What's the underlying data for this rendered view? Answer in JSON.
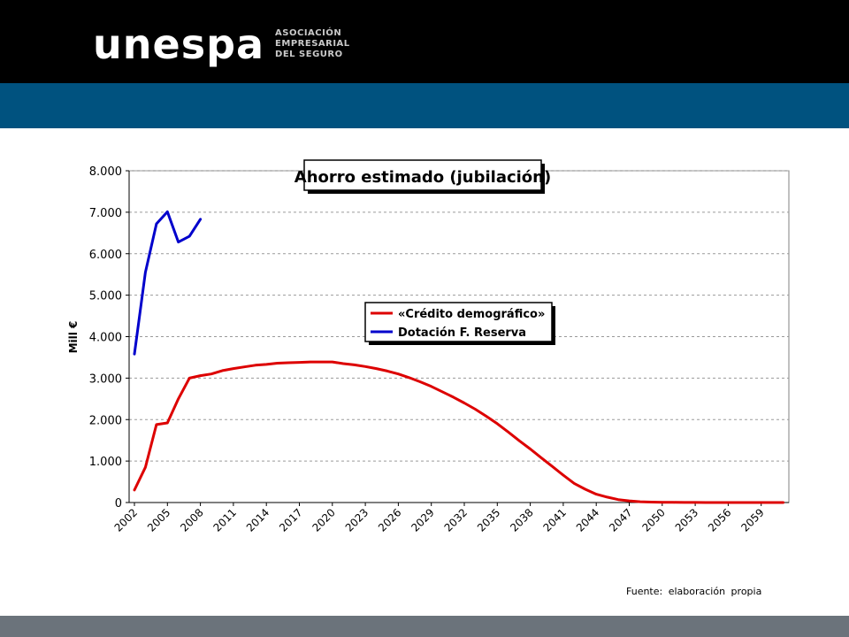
{
  "header": {
    "logo_text": "unespa",
    "logo_subtitle": [
      "ASOCIACIÓN",
      "EMPRESARIAL",
      "DEL SEGURO"
    ]
  },
  "colors": {
    "header_black": "#000000",
    "header_blue": "#00527f",
    "footer_gray": "#6b737b",
    "series_red": "#dd0000",
    "series_blue": "#0000cc"
  },
  "chart_data": {
    "type": "line",
    "title": "Ahorro estimado (jubilación)",
    "ylabel": "Mill €",
    "ylim": [
      0,
      8000
    ],
    "yticks": [
      0,
      1000,
      2000,
      3000,
      4000,
      5000,
      6000,
      7000,
      8000
    ],
    "ytick_labels": [
      "0",
      "1.000",
      "2.000",
      "3.000",
      "4.000",
      "5.000",
      "6.000",
      "7.000",
      "8.000"
    ],
    "xlim": [
      2002,
      2062
    ],
    "xticks": [
      2002,
      2005,
      2008,
      2011,
      2014,
      2017,
      2020,
      2023,
      2026,
      2029,
      2032,
      2035,
      2038,
      2041,
      2044,
      2047,
      2050,
      2053,
      2056,
      2059
    ],
    "grid": "horizontal dashed",
    "legend_position": "center-right",
    "series": [
      {
        "name": "«Crédito demográfico»",
        "color": "#dd0000",
        "x": [
          2002,
          2003,
          2004,
          2005,
          2006,
          2007,
          2008,
          2009,
          2010,
          2011,
          2012,
          2013,
          2014,
          2015,
          2016,
          2017,
          2018,
          2019,
          2020,
          2021,
          2022,
          2023,
          2024,
          2025,
          2026,
          2027,
          2028,
          2029,
          2030,
          2031,
          2032,
          2033,
          2034,
          2035,
          2036,
          2037,
          2038,
          2039,
          2040,
          2041,
          2042,
          2043,
          2044,
          2045,
          2046,
          2047,
          2048,
          2049,
          2050,
          2051,
          2052,
          2053,
          2054,
          2055,
          2056,
          2057,
          2058,
          2059,
          2060,
          2061
        ],
        "values": [
          300,
          850,
          1880,
          1920,
          2500,
          3000,
          3060,
          3100,
          3180,
          3230,
          3270,
          3310,
          3330,
          3360,
          3370,
          3380,
          3390,
          3390,
          3390,
          3350,
          3320,
          3280,
          3230,
          3170,
          3100,
          3010,
          2910,
          2800,
          2670,
          2540,
          2400,
          2250,
          2080,
          1900,
          1700,
          1490,
          1290,
          1080,
          870,
          660,
          460,
          320,
          200,
          130,
          70,
          40,
          20,
          10,
          5,
          5,
          3,
          2,
          1,
          0,
          0,
          0,
          0,
          0,
          0,
          0
        ]
      },
      {
        "name": "Dotación F. Reserva",
        "color": "#0000cc",
        "x": [
          2002,
          2003,
          2004,
          2005,
          2006,
          2007,
          2008
        ],
        "values": [
          3580,
          5550,
          6720,
          7010,
          6280,
          6420,
          6830
        ]
      }
    ]
  },
  "footer": {
    "source": "Fuente: elaboración propia"
  }
}
